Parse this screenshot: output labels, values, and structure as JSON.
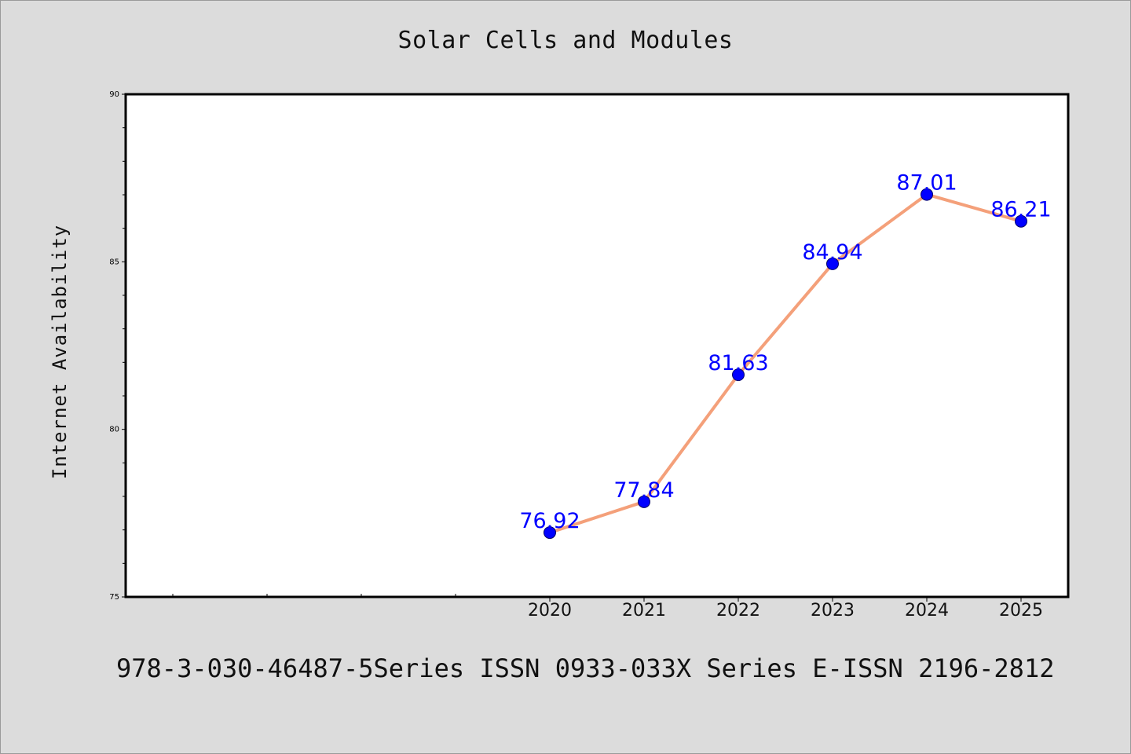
{
  "chart_data": {
    "type": "line",
    "title": "Solar Cells and Modules",
    "ylabel": "Internet Availability",
    "xlabel": "",
    "x": [
      "2020",
      "2021",
      "2022",
      "2023",
      "2024",
      "2025"
    ],
    "series": [
      {
        "values": [
          76.92,
          77.84,
          81.63,
          84.94,
          87.01,
          86.21
        ]
      }
    ],
    "data_labels": [
      "76.92",
      "77.84",
      "81.63",
      "84.94",
      "87.01",
      "86.21"
    ],
    "ylim": [
      75,
      90
    ],
    "yticks": [
      75,
      80,
      85,
      90
    ],
    "x_range": [
      2015.5,
      2025.5
    ],
    "grid": false,
    "line_color": "#f4a07a",
    "marker_color": "#0000ff",
    "label_color": "#0000ff"
  },
  "footer": {
    "text": "978-3-030-46487-5Series ISSN 0933-033X Series E-ISSN 2196-2812"
  }
}
